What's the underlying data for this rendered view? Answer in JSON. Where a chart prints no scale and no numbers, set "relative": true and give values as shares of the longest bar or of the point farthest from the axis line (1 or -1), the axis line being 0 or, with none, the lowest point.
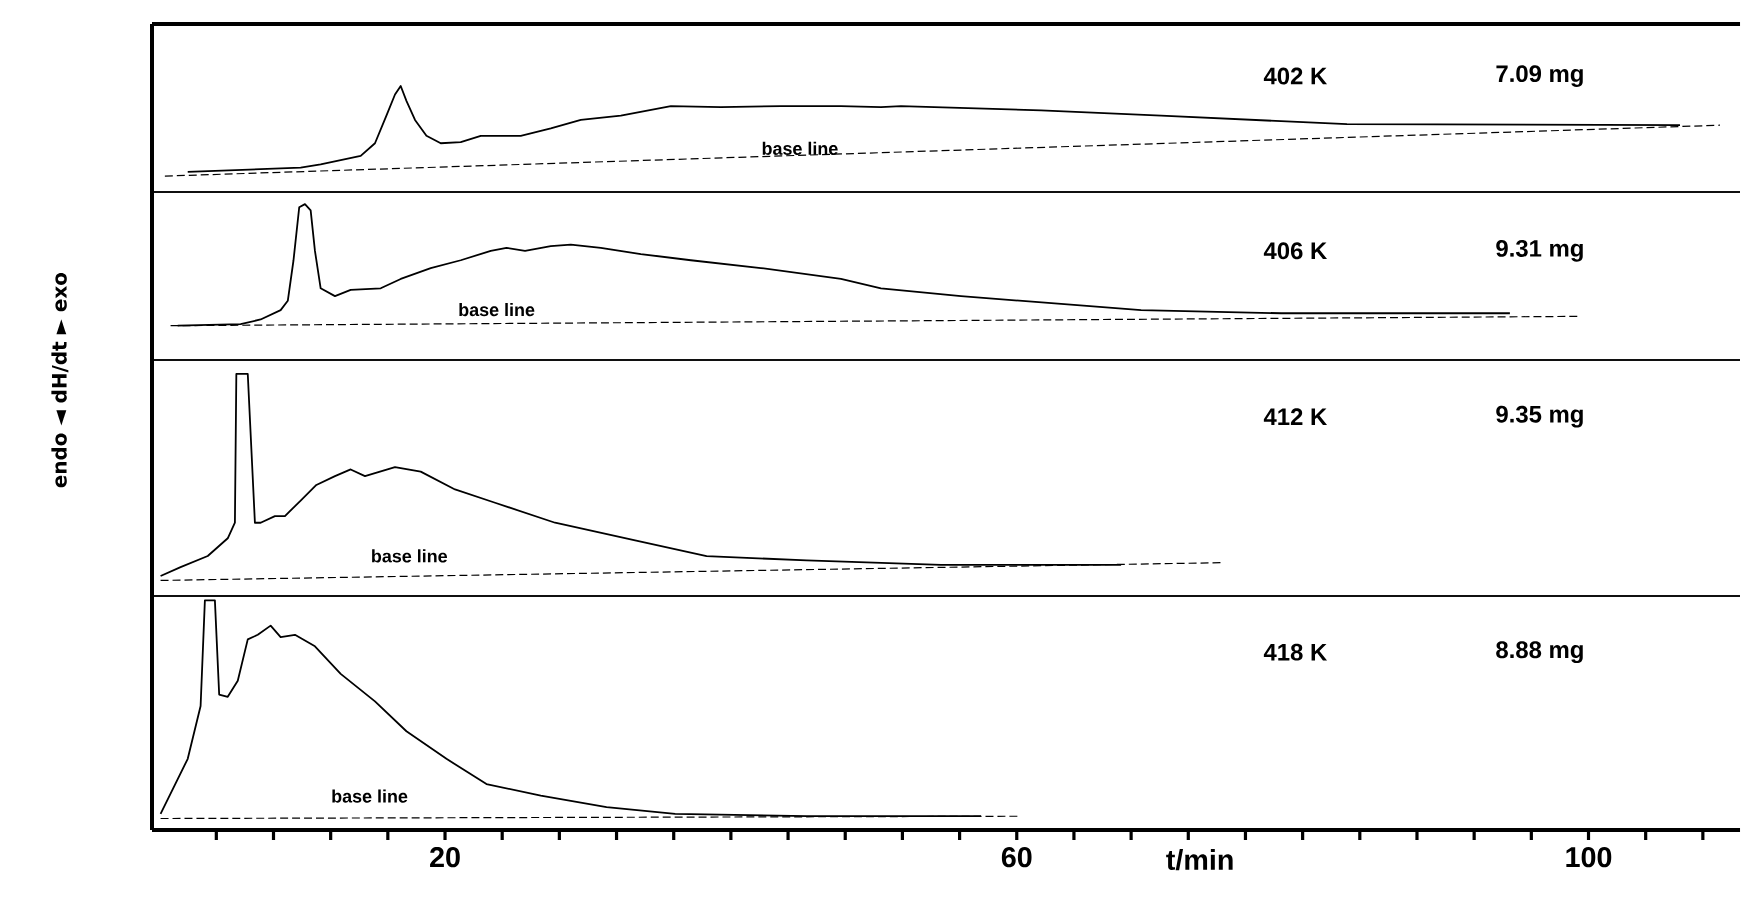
{
  "chart_data": [
    {
      "type": "line",
      "xlim": [
        -0.5,
        110.6
      ],
      "tick_labels": false,
      "relative": true,
      "annotations": [
        "402 K",
        "7.09 mg",
        "base line"
      ],
      "series": [
        {
          "color": "#000000",
          "x": [
            2.0,
            9.9,
            11.3,
            14.1,
            15.1,
            15.9,
            16.5,
            16.9,
            17.3,
            17.9,
            18.7,
            19.7,
            21.1,
            22.5,
            25.3,
            27.4,
            29.5,
            32.3,
            35.8,
            39.3,
            43.5,
            47.7,
            50.5,
            51.9,
            61.7,
            70.1,
            83.1,
            106.4
          ],
          "values": [
            0.19,
            0.23,
            0.26,
            0.34,
            0.46,
            0.72,
            0.92,
            1,
            0.86,
            0.68,
            0.53,
            0.46,
            0.47,
            0.53,
            0.53,
            0.6,
            0.68,
            0.72,
            0.81,
            0.8,
            0.81,
            0.81,
            0.8,
            0.81,
            0.77,
            0.72,
            0.64,
            0.63
          ]
        },
        {
          "color": "#000000",
          "line_style": "dashed",
          "x": [
            0.4,
            109.2
          ],
          "values": [
            0.15,
            0.63
          ]
        }
      ]
    },
    {
      "type": "line",
      "xlim": [
        -0.5,
        110.6
      ],
      "tick_labels": false,
      "relative": true,
      "ylabel": "endo ◄ dH/dt ► exo",
      "annotations": [
        "406 K",
        "9.31 mg",
        "base line"
      ],
      "series": [
        {
          "color": "#000000",
          "x": [
            1.3,
            5.7,
            7.1,
            8.5,
            9.0,
            9.4,
            9.8,
            10.2,
            10.6,
            10.9,
            11.3,
            12.3,
            13.4,
            15.5,
            16.9,
            19.0,
            21.1,
            23.2,
            24.3,
            25.6,
            27.4,
            28.8,
            30.9,
            33.7,
            37.2,
            42.1,
            47.7,
            50.5,
            56.1,
            63.1,
            68.7,
            78.5,
            94.5
          ],
          "values": [
            0.22,
            0.23,
            0.26,
            0.32,
            0.38,
            0.64,
            0.98,
            1,
            0.96,
            0.7,
            0.46,
            0.41,
            0.45,
            0.46,
            0.52,
            0.59,
            0.64,
            0.7,
            0.72,
            0.7,
            0.73,
            0.74,
            0.72,
            0.68,
            0.64,
            0.59,
            0.52,
            0.46,
            0.41,
            0.36,
            0.32,
            0.3,
            0.3
          ]
        },
        {
          "color": "#000000",
          "line_style": "dashed",
          "x": [
            0.8,
            99.4
          ],
          "values": [
            0.22,
            0.28
          ]
        }
      ]
    },
    {
      "type": "line",
      "xlim": [
        -0.5,
        110.6
      ],
      "tick_labels": false,
      "relative": true,
      "annotations": [
        "412 K",
        "9.35 mg",
        "base line"
      ],
      "series": [
        {
          "color": "#000000",
          "x": [
            0.1,
            1.5,
            3.4,
            4.8,
            5.3,
            5.4,
            6.2,
            6.7,
            7.1,
            8.1,
            8.8,
            9.9,
            11.0,
            12.3,
            13.4,
            14.4,
            16.5,
            18.3,
            20.7,
            23.5,
            27.7,
            33.3,
            38.3,
            45.3,
            54.7,
            67.3
          ],
          "values": [
            0.09,
            0.13,
            0.18,
            0.26,
            0.33,
            1,
            1,
            0.33,
            0.33,
            0.36,
            0.36,
            0.43,
            0.5,
            0.54,
            0.57,
            0.54,
            0.58,
            0.56,
            0.48,
            0.42,
            0.33,
            0.25,
            0.18,
            0.16,
            0.14,
            0.14
          ]
        },
        {
          "color": "#000000",
          "line_style": "dashed",
          "x": [
            0.1,
            74.3
          ],
          "values": [
            0.07,
            0.15
          ]
        }
      ]
    },
    {
      "type": "line",
      "xlim": [
        -0.5,
        110.6
      ],
      "relative": true,
      "tick_labels": "x",
      "xlabel": "t/min",
      "xticks": [
        {
          "value": 4,
          "label": null
        },
        {
          "value": 8,
          "label": null
        },
        {
          "value": 12,
          "label": null
        },
        {
          "value": 16,
          "label": null
        },
        20,
        {
          "value": 24,
          "label": null
        },
        {
          "value": 28,
          "label": null
        },
        {
          "value": 32,
          "label": null
        },
        {
          "value": 36,
          "label": null
        },
        {
          "value": 40,
          "label": null
        },
        {
          "value": 44,
          "label": null
        },
        {
          "value": 48,
          "label": null
        },
        {
          "value": 52,
          "label": null
        },
        {
          "value": 56,
          "label": null
        },
        60,
        {
          "value": 64,
          "label": null
        },
        {
          "value": 68,
          "label": null
        },
        {
          "value": 72,
          "label": null
        },
        {
          "value": 76,
          "label": null
        },
        {
          "value": 80,
          "label": null
        },
        {
          "value": 84,
          "label": null
        },
        {
          "value": 88,
          "label": null
        },
        {
          "value": 92,
          "label": null
        },
        {
          "value": 96,
          "label": null
        },
        100,
        {
          "value": 104,
          "label": null
        },
        {
          "value": 108,
          "label": null
        }
      ],
      "annotations": [
        "418 K",
        "8.88 mg",
        "base line"
      ],
      "series": [
        {
          "color": "#000000",
          "x": [
            0.1,
            2.0,
            2.9,
            3.2,
            3.9,
            4.2,
            4.8,
            5.5,
            6.2,
            6.9,
            7.8,
            8.5,
            9.5,
            10.9,
            12.7,
            15.1,
            17.3,
            20.1,
            22.9,
            26.7,
            31.3,
            36.1,
            45.3,
            57.5
          ],
          "values": [
            0.07,
            0.31,
            0.54,
            1,
            1,
            0.59,
            0.58,
            0.65,
            0.83,
            0.85,
            0.89,
            0.84,
            0.85,
            0.8,
            0.68,
            0.56,
            0.43,
            0.31,
            0.2,
            0.15,
            0.1,
            0.07,
            0.06,
            0.06
          ]
        },
        {
          "color": "#000000",
          "line_style": "dashed",
          "x": [
            0.1,
            60.3
          ],
          "values": [
            0.05,
            0.06
          ]
        }
      ]
    }
  ]
}
